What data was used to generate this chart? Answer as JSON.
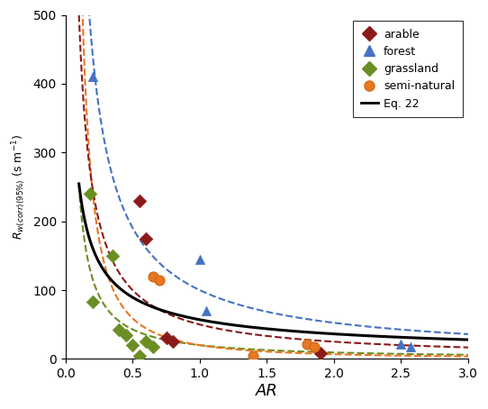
{
  "arable_x": [
    0.55,
    0.6,
    0.75,
    0.8,
    1.9
  ],
  "arable_y": [
    230,
    175,
    30,
    25,
    8
  ],
  "forest_x": [
    0.2,
    1.0,
    1.05,
    2.5,
    2.57
  ],
  "forest_y": [
    410,
    145,
    70,
    22,
    18
  ],
  "grassland_x": [
    0.18,
    0.2,
    0.35,
    0.4,
    0.45,
    0.5,
    0.55,
    0.6,
    0.65
  ],
  "grassland_y": [
    240,
    83,
    150,
    42,
    35,
    20,
    5,
    25,
    17
  ],
  "semi_natural_x": [
    0.65,
    0.7,
    1.4,
    1.8,
    1.85
  ],
  "semi_natural_y": [
    120,
    115,
    5,
    22,
    18
  ],
  "arable_color": "#8B1A1A",
  "forest_color": "#4472C4",
  "grassland_color": "#6B8E23",
  "semi_natural_color": "#E87722",
  "eq22_a": 25.0,
  "eq22_b": 1.0,
  "forest_a": 80.0,
  "forest_b": 1.05,
  "arable_a": 35.0,
  "arable_b": 1.3,
  "grassland_a": 22.0,
  "grassland_b": 1.5,
  "semi_a": 18.0,
  "semi_b": 1.2,
  "xlim": [
    0,
    3
  ],
  "ylim": [
    0,
    500
  ],
  "yticks": [
    0,
    100,
    200,
    300,
    400,
    500
  ],
  "xticks": [
    0,
    0.5,
    1.0,
    1.5,
    2.0,
    2.5,
    3.0
  ],
  "xlabel": "AR",
  "ylabel": "$R_{w(corr)(95\\%)}$ (s m$^{-1}$)",
  "bg_color": "#FFFFFF"
}
